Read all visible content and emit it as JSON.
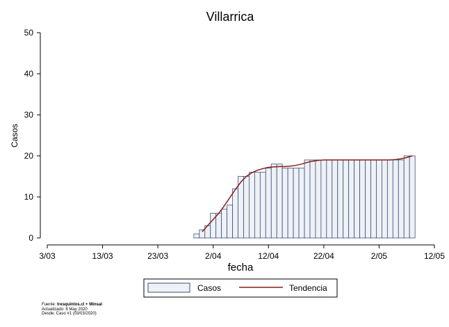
{
  "chart_data": {
    "type": "bar",
    "title": "Villarrica",
    "xlabel": "fecha",
    "ylabel": "Casos",
    "ylim": [
      0,
      50
    ],
    "yticks": [
      0,
      10,
      20,
      30,
      40,
      50
    ],
    "xlim": [
      "2020-03-03",
      "2020-05-12"
    ],
    "xticks": [
      "2020-03-03",
      "2020-03-13",
      "2020-03-23",
      "2020-04-02",
      "2020-04-12",
      "2020-04-22",
      "2020-05-02",
      "2020-05-12"
    ],
    "xtick_labels": [
      "3/03",
      "13/03",
      "23/03",
      "2/04",
      "12/04",
      "22/04",
      "2/05",
      "12/05"
    ],
    "grid": false,
    "legend_position": "bottom",
    "series": [
      {
        "name": "Casos",
        "kind": "bar",
        "color": "#eef1f5",
        "edge_color": "#3a4f7a",
        "x": [
          "2020-03-30",
          "2020-03-31",
          "2020-04-01",
          "2020-04-02",
          "2020-04-03",
          "2020-04-04",
          "2020-04-05",
          "2020-04-06",
          "2020-04-07",
          "2020-04-08",
          "2020-04-09",
          "2020-04-10",
          "2020-04-11",
          "2020-04-12",
          "2020-04-13",
          "2020-04-14",
          "2020-04-15",
          "2020-04-16",
          "2020-04-17",
          "2020-04-18",
          "2020-04-19",
          "2020-04-20",
          "2020-04-21",
          "2020-04-22",
          "2020-04-23",
          "2020-04-24",
          "2020-04-25",
          "2020-04-26",
          "2020-04-27",
          "2020-04-28",
          "2020-04-29",
          "2020-04-30",
          "2020-05-01",
          "2020-05-02",
          "2020-05-03",
          "2020-05-04",
          "2020-05-05",
          "2020-05-06",
          "2020-05-07",
          "2020-05-08"
        ],
        "values": [
          1,
          2,
          3,
          6,
          6,
          7,
          8,
          12,
          15,
          15,
          16,
          16,
          16,
          17,
          18,
          18,
          17,
          17,
          17,
          17,
          19,
          19,
          19,
          19,
          19,
          19,
          19,
          19,
          19,
          19,
          19,
          19,
          19,
          19,
          19,
          19,
          19,
          19,
          20,
          20
        ]
      },
      {
        "name": "Tendencia",
        "kind": "line",
        "color": "#8b1a1a",
        "x": [
          "2020-03-31",
          "2020-04-01",
          "2020-04-02",
          "2020-04-03",
          "2020-04-04",
          "2020-04-05",
          "2020-04-06",
          "2020-04-07",
          "2020-04-08",
          "2020-04-09",
          "2020-04-10",
          "2020-04-11",
          "2020-04-12",
          "2020-04-13",
          "2020-04-14",
          "2020-04-15",
          "2020-04-16",
          "2020-04-17",
          "2020-04-18",
          "2020-04-19",
          "2020-04-20",
          "2020-04-21",
          "2020-04-22",
          "2020-04-23",
          "2020-04-24",
          "2020-04-25",
          "2020-04-26",
          "2020-04-27",
          "2020-04-28",
          "2020-04-29",
          "2020-04-30",
          "2020-05-01",
          "2020-05-02",
          "2020-05-03",
          "2020-05-04",
          "2020-05-05",
          "2020-05-06",
          "2020-05-07",
          "2020-05-08"
        ],
        "values": [
          1.5,
          3.0,
          4.5,
          6.0,
          7.8,
          9.8,
          11.8,
          13.6,
          15.0,
          15.9,
          16.5,
          16.9,
          17.2,
          17.3,
          17.4,
          17.4,
          17.5,
          17.7,
          18.0,
          18.4,
          18.7,
          18.9,
          19.0,
          19.0,
          19.0,
          19.0,
          19.0,
          19.0,
          19.0,
          19.0,
          19.0,
          19.0,
          19.0,
          19.0,
          19.0,
          19.1,
          19.3,
          19.6,
          20.0
        ]
      }
    ]
  },
  "footer": {
    "source_label": "Fuente:",
    "source_value": "tresquintos.cl + Minsal",
    "updated": "Actualizado: 8 May 2020",
    "since": "Desde: Caso #1  (03/03/2020)"
  }
}
